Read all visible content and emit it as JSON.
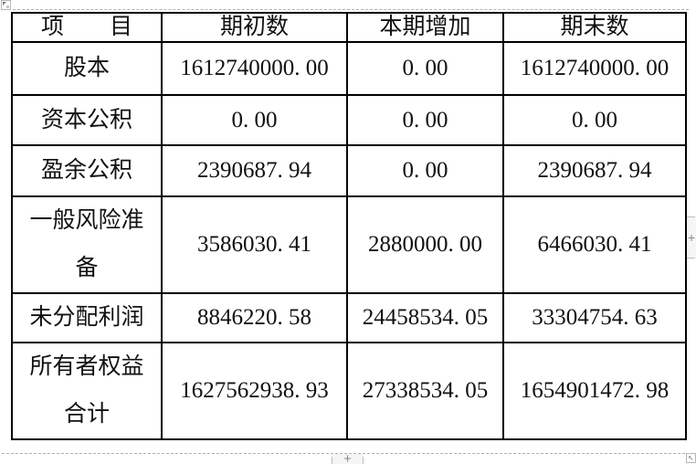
{
  "table": {
    "headers": [
      "项　　目",
      "期初数",
      "本期增加",
      "期末数"
    ],
    "rows": [
      {
        "label": "股本",
        "values": [
          "1612740000. 00",
          "0. 00",
          "1612740000. 00"
        ]
      },
      {
        "label": "资本公积",
        "values": [
          "0. 00",
          "0. 00",
          "0. 00"
        ]
      },
      {
        "label": "盈余公积",
        "values": [
          "2390687. 94",
          "0. 00",
          "2390687. 94"
        ]
      },
      {
        "label": "一般风险准\n备",
        "values": [
          "3586030. 41",
          "2880000. 00",
          "6466030. 41"
        ]
      },
      {
        "label": "未分配利润",
        "values": [
          "8846220. 58",
          "24458534. 05",
          "33304754. 63"
        ]
      },
      {
        "label": "所有者权益\n合计",
        "values": [
          "1627562938. 93",
          "27338534. 05",
          "1654901472. 98"
        ]
      }
    ]
  },
  "controls": {
    "add_row_label": "+",
    "add_col_label": "+"
  },
  "icons": {
    "move_handle": "corner-triangle",
    "resize_handle": "↖",
    "plus": "+"
  },
  "colors": {
    "table_border": "#000000",
    "text": "#111111",
    "boundary_dash": "#b0b0b0",
    "control_bg": "#f5f5f5",
    "control_line": "#bdbdbd",
    "control_plus": "#8a8a8a",
    "handle_border": "#b5b5b5"
  }
}
